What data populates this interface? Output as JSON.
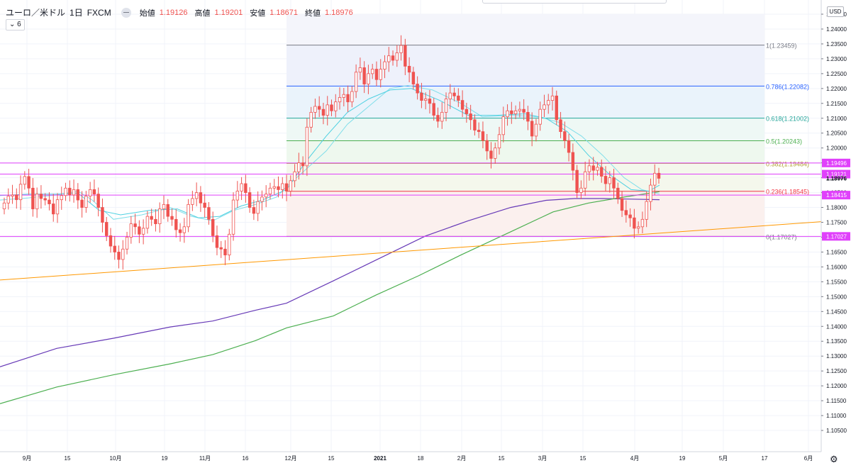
{
  "legend": {
    "symbol": "ユーロ／米ドル",
    "interval": "1日",
    "broker": "FXCM",
    "open_label": "始値",
    "open": "1.19126",
    "high_label": "高値",
    "high": "1.19201",
    "low_label": "安値",
    "low": "1.18671",
    "close_label": "終値",
    "close": "1.18976",
    "indicators_toggle": "⌄ 6"
  },
  "currency_button": "USD",
  "settings_icon": "gear-icon",
  "colors": {
    "up": "#ffffff",
    "down": "#ef5350",
    "candle_outline": "#ef5350",
    "sma_long": "#4caf50",
    "sma_longer": "#673ab7",
    "sma_fast": "#80deea",
    "sma_fast2": "#4dd0e1",
    "trend": "#ff9800",
    "hline": "#e040fb"
  },
  "chart_data": {
    "type": "candlestick",
    "title": "ユーロ／米ドル · 1日 · FXCM",
    "ylim": [
      1.1,
      1.245
    ],
    "y_ticks": [
      "1.24500",
      "1.24000",
      "1.23500",
      "1.23000",
      "1.22500",
      "1.22000",
      "1.21500",
      "1.21000",
      "1.20500",
      "1.20000",
      "1.19500",
      "1.19000",
      "1.18500",
      "1.18000",
      "1.17500",
      "1.17000",
      "1.16500",
      "1.16000",
      "1.15500",
      "1.15000",
      "1.14500",
      "1.14000",
      "1.13500",
      "1.13000",
      "1.12500",
      "1.12000",
      "1.11500",
      "1.11000",
      "1.10500"
    ],
    "x_ticks": [
      "9月",
      "15",
      "10月",
      "19",
      "11月",
      "16",
      "12月",
      "15",
      "2021",
      "18",
      "2月",
      "15",
      "3月",
      "15",
      "4月",
      "19",
      "5月",
      "17",
      "6月"
    ],
    "price_labels": [
      {
        "text": "1.19496",
        "value": 1.19496,
        "color": "#e040fb"
      },
      {
        "text": "1.19121",
        "value": 1.19121,
        "color": "#e040fb"
      },
      {
        "text": "1.18976",
        "value": 1.18976,
        "color": "none"
      },
      {
        "text": "1.18415",
        "value": 1.18415,
        "color": "#e040fb"
      },
      {
        "text": "1.17027",
        "value": 1.17027,
        "color": "#e040fb"
      }
    ],
    "horizontal_lines": [
      1.19496,
      1.19121,
      1.18415,
      1.17027
    ],
    "fibonacci": [
      {
        "label": "1(1.23459)",
        "value": 1.23459,
        "color": "#787b86"
      },
      {
        "label": "0.786(1.22082)",
        "value": 1.22082,
        "color": "#2962ff"
      },
      {
        "label": "0.618(1.21002)",
        "value": 1.21002,
        "color": "#26a69a"
      },
      {
        "label": "0.5(1.20243)",
        "value": 1.20243,
        "color": "#4caf50"
      },
      {
        "label": "0.382(1.19484)",
        "value": 1.19484,
        "color": "#b0a030"
      },
      {
        "label": "0.236(1.18545)",
        "value": 1.18545,
        "color": "#f23645"
      },
      {
        "label": "0(1.17027)",
        "value": 1.17027,
        "color": "#787b86"
      }
    ],
    "trendline": {
      "from": 1.1556,
      "to": 1.1752
    },
    "candles_close": [
      1.1815,
      1.1838,
      1.1842,
      1.1826,
      1.1878,
      1.1904,
      1.1865,
      1.1795,
      1.1845,
      1.183,
      1.1825,
      1.1812,
      1.1778,
      1.1826,
      1.184,
      1.1865,
      1.1842,
      1.186,
      1.1825,
      1.18,
      1.1838,
      1.186,
      1.1845,
      1.18,
      1.175,
      1.1705,
      1.167,
      1.165,
      1.1625,
      1.166,
      1.17,
      1.1745,
      1.1735,
      1.171,
      1.173,
      1.177,
      1.176,
      1.1745,
      1.1795,
      1.181,
      1.177,
      1.176,
      1.1725,
      1.1715,
      1.1735,
      1.181,
      1.183,
      1.185,
      1.1815,
      1.18,
      1.176,
      1.1705,
      1.1665,
      1.166,
      1.164,
      1.171,
      1.1825,
      1.1855,
      1.188,
      1.185,
      1.18,
      1.178,
      1.182,
      1.1835,
      1.1845,
      1.1865,
      1.187,
      1.186,
      1.188,
      1.1855,
      1.189,
      1.192,
      1.195,
      1.194,
      1.207,
      1.212,
      1.214,
      1.213,
      1.211,
      1.2145,
      1.2125,
      1.2155,
      1.217,
      1.218,
      1.2155,
      1.219,
      1.2255,
      1.227,
      1.2215,
      1.225,
      1.2265,
      1.223,
      1.2265,
      1.229,
      1.231,
      1.2295,
      1.232,
      1.2345,
      1.2275,
      1.2255,
      1.2215,
      1.2185,
      1.216,
      1.2165,
      1.215,
      1.211,
      1.209,
      1.212,
      1.2165,
      1.2185,
      1.2175,
      1.216,
      1.213,
      1.2115,
      1.2095,
      1.206,
      1.2055,
      1.2025,
      1.199,
      1.1965,
      1.2,
      1.2045,
      1.2105,
      1.2125,
      1.2115,
      1.2125,
      1.213,
      1.212,
      1.209,
      1.204,
      1.208,
      1.213,
      1.2145,
      1.216,
      1.2175,
      1.2095,
      1.2055,
      1.2025,
      1.1985,
      1.1925,
      1.185,
      1.1865,
      1.192,
      1.194,
      1.1925,
      1.1935,
      1.1905,
      1.188,
      1.19,
      1.1865,
      1.183,
      1.179,
      1.1775,
      1.1765,
      1.173,
      1.1735,
      1.176,
      1.182,
      1.1875,
      1.1915,
      1.1898
    ]
  }
}
